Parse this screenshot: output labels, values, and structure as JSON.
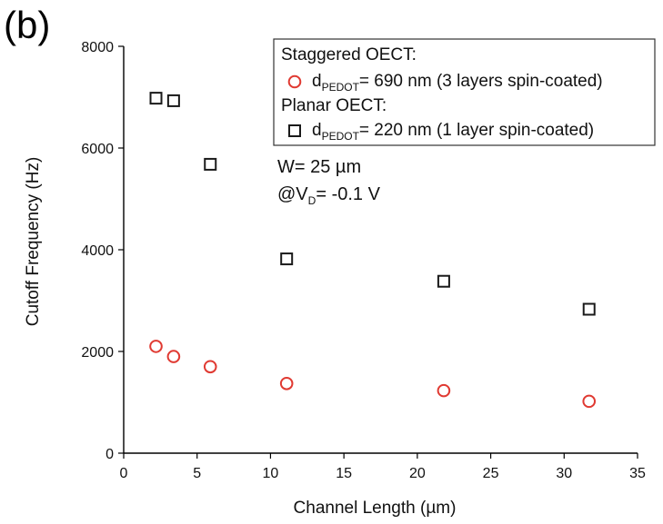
{
  "figure_label": "(b)",
  "colors": {
    "axis": "#000000",
    "text": "#111111",
    "staggered_marker": "#e03a32",
    "planar_marker": "#1a1a1a"
  },
  "legend": {
    "group_staggered": "Staggered OECT:",
    "group_planar": "Planar OECT:",
    "staggered_label_main": "d",
    "staggered_label_sub": "PEDOT",
    "staggered_label_rest": "= 690 nm (3 layers spin-coated)",
    "planar_label_main": "d",
    "planar_label_sub": "PEDOT",
    "planar_label_rest": "= 220 nm (1 layer spin-coated)"
  },
  "annotation": {
    "width_text": "W= 25 µm",
    "voltage_prefix": "@V",
    "voltage_sub": "D",
    "voltage_rest": "= -0.1 V"
  },
  "chart_data": {
    "type": "scatter",
    "title": "",
    "xlabel": "Channel Length (µm)",
    "ylabel": "Cutoff Frequency (Hz)",
    "xlim": [
      0,
      35
    ],
    "ylim": [
      0,
      8000
    ],
    "xticks": [
      0,
      5,
      10,
      15,
      20,
      25,
      30,
      35
    ],
    "yticks": [
      0,
      2000,
      4000,
      6000,
      8000
    ],
    "grid": false,
    "legend_position": "top-right",
    "series": [
      {
        "name": "Staggered OECT: dPEDOT= 690 nm (3 layers spin-coated)",
        "marker": "circle",
        "color": "#e03a32",
        "x": [
          2.2,
          3.4,
          5.9,
          11.1,
          21.8,
          31.7
        ],
        "y": [
          2100,
          1900,
          1700,
          1370,
          1230,
          1020
        ]
      },
      {
        "name": "Planar OECT: dPEDOT= 220 nm (1 layer spin-coated)",
        "marker": "square",
        "color": "#1a1a1a",
        "x": [
          2.2,
          3.4,
          5.9,
          11.1,
          21.8,
          31.7
        ],
        "y": [
          6980,
          6930,
          5680,
          3820,
          3380,
          2830
        ]
      }
    ]
  }
}
